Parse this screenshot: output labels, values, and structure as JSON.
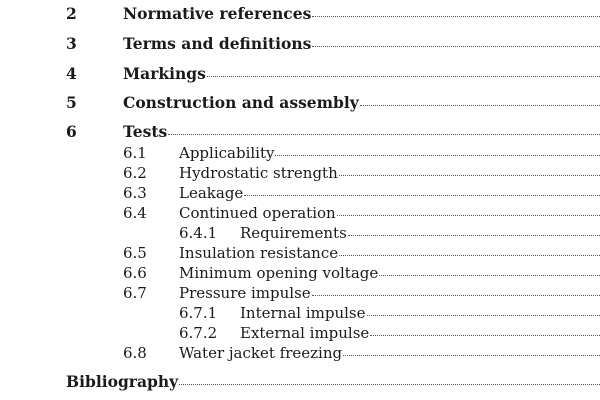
{
  "toc": {
    "s2": {
      "num": "2",
      "title": "Normative references"
    },
    "s3": {
      "num": "3",
      "title": "Terms and definitions"
    },
    "s4": {
      "num": "4",
      "title": "Markings"
    },
    "s5": {
      "num": "5",
      "title": "Construction and assembly"
    },
    "s6": {
      "num": "6",
      "title": "Tests"
    },
    "s6_1": {
      "num": "6.1",
      "title": "Applicability"
    },
    "s6_2": {
      "num": "6.2",
      "title": "Hydrostatic strength"
    },
    "s6_3": {
      "num": "6.3",
      "title": "Leakage"
    },
    "s6_4": {
      "num": "6.4",
      "title": "Continued operation"
    },
    "s6_4_1": {
      "num": "6.4.1",
      "title": "Requirements"
    },
    "s6_5": {
      "num": "6.5",
      "title": "Insulation resistance"
    },
    "s6_6": {
      "num": "6.6",
      "title": "Minimum opening voltage"
    },
    "s6_7": {
      "num": "6.7",
      "title": "Pressure impulse"
    },
    "s6_7_1": {
      "num": "6.7.1",
      "title": "Internal impulse"
    },
    "s6_7_2": {
      "num": "6.7.2",
      "title": "External impulse"
    },
    "s6_8": {
      "num": "6.8",
      "title": "Water jacket freezing"
    },
    "bibliography": {
      "title": "Bibliography"
    }
  }
}
